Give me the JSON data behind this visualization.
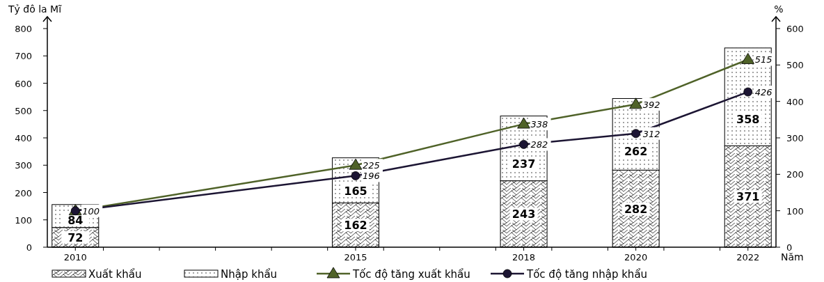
{
  "chart_data": {
    "type": "bar",
    "stacked": true,
    "x": [
      2010,
      2015,
      2018,
      2020,
      2022
    ],
    "xlim": [
      2009.5,
      2022.5
    ],
    "xticks": [
      2010,
      {
        "value": 2010.5,
        "label": null
      },
      {
        "value": 2011.5,
        "label": null
      },
      {
        "value": 2012.5,
        "label": null
      },
      {
        "value": 2013.5,
        "label": null
      },
      {
        "value": 2014.5,
        "label": null
      },
      2015,
      {
        "value": 2015.5,
        "label": null
      },
      {
        "value": 2016.5,
        "label": null
      },
      {
        "value": 2017.5,
        "label": null
      },
      2018,
      {
        "value": 2018.5,
        "label": null
      },
      {
        "value": 2019.5,
        "label": null
      },
      2020,
      {
        "value": 2020.5,
        "label": null
      },
      {
        "value": 2021.5,
        "label": null
      },
      2022
    ],
    "ylabel": "Tỷ đô la Mĩ",
    "y2label": "%",
    "xlabel": "Năm",
    "ylim": [
      0,
      800
    ],
    "yticks": [
      0,
      100,
      200,
      300,
      400,
      500,
      600,
      700,
      800
    ],
    "y2lim": [
      0,
      600
    ],
    "y2ticks": [
      0,
      100,
      200,
      300,
      400,
      500,
      600
    ],
    "legend": "bottom",
    "grid": false,
    "data_labels": true,
    "series": [
      {
        "name": "Xuất khẩu",
        "type": "bar",
        "color": "#000000",
        "values": [
          72,
          162,
          243,
          282,
          371
        ]
      },
      {
        "name": "Nhập khẩu",
        "type": "bar",
        "color": "#000000",
        "values": [
          84,
          165,
          237,
          262,
          358
        ]
      },
      {
        "name": "Tốc độ tăng xuất khẩu",
        "type": "line",
        "axis": "y2",
        "marker": "triangle",
        "color": "#4f6228",
        "values": [
          100,
          225,
          338,
          392,
          515
        ],
        "value_labels": [
          null,
          "225",
          "338",
          "392",
          "515"
        ]
      },
      {
        "name": "Tốc độ tăng nhập khẩu",
        "type": "line",
        "axis": "y2",
        "marker": "circle",
        "color": "#1c1533",
        "values": [
          100,
          196,
          282,
          312,
          426
        ],
        "value_labels": [
          "100",
          "196",
          "282",
          "312",
          "426"
        ]
      }
    ]
  }
}
